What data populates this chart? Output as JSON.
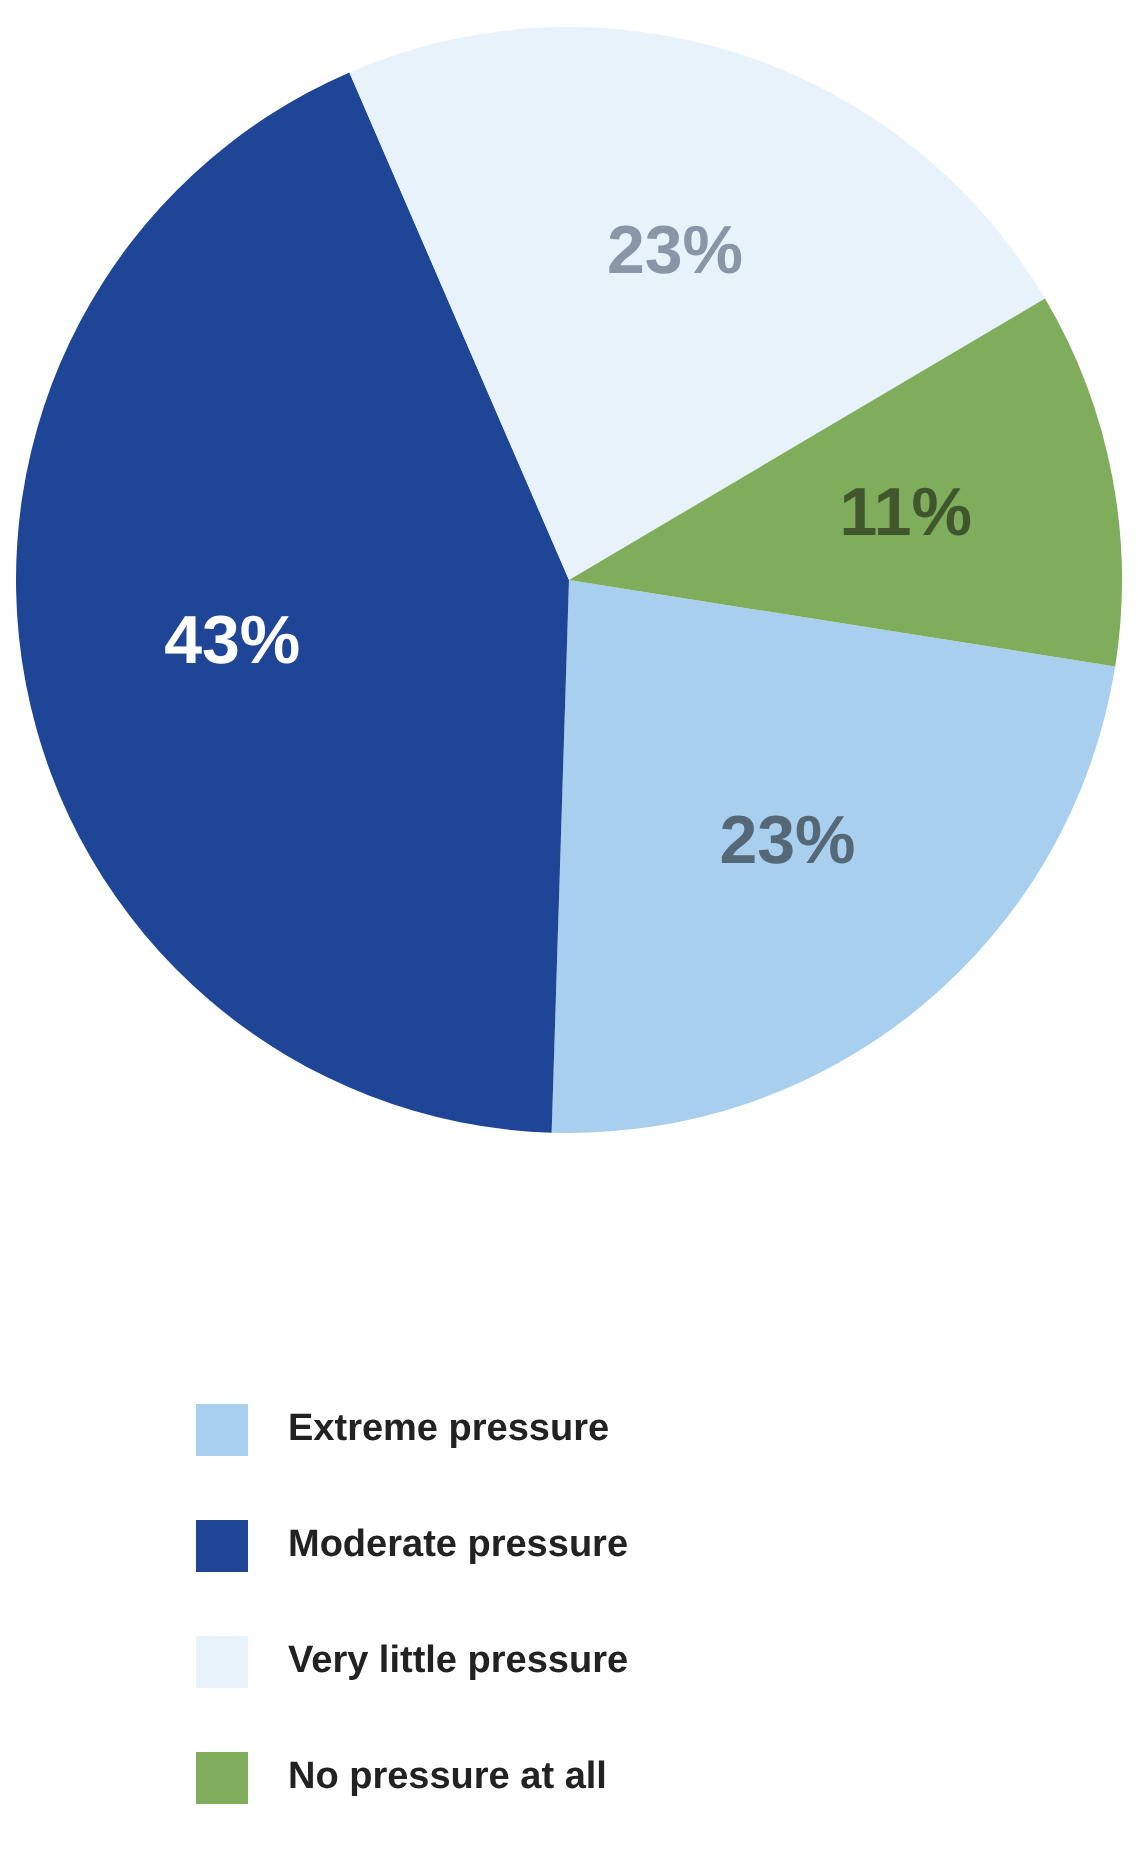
{
  "chart_data": {
    "type": "pie",
    "categories": [
      "Extreme pressure",
      "Moderate pressure",
      "Very little pressure",
      "No pressure at all"
    ],
    "values": [
      23,
      43,
      23,
      11
    ],
    "colors": [
      "#a9cfee",
      "#1f4597",
      "#e8f2fb",
      "#7fad5b"
    ],
    "value_labels": [
      "23%",
      "43%",
      "23%",
      "11%"
    ],
    "legend": "bottom"
  }
}
